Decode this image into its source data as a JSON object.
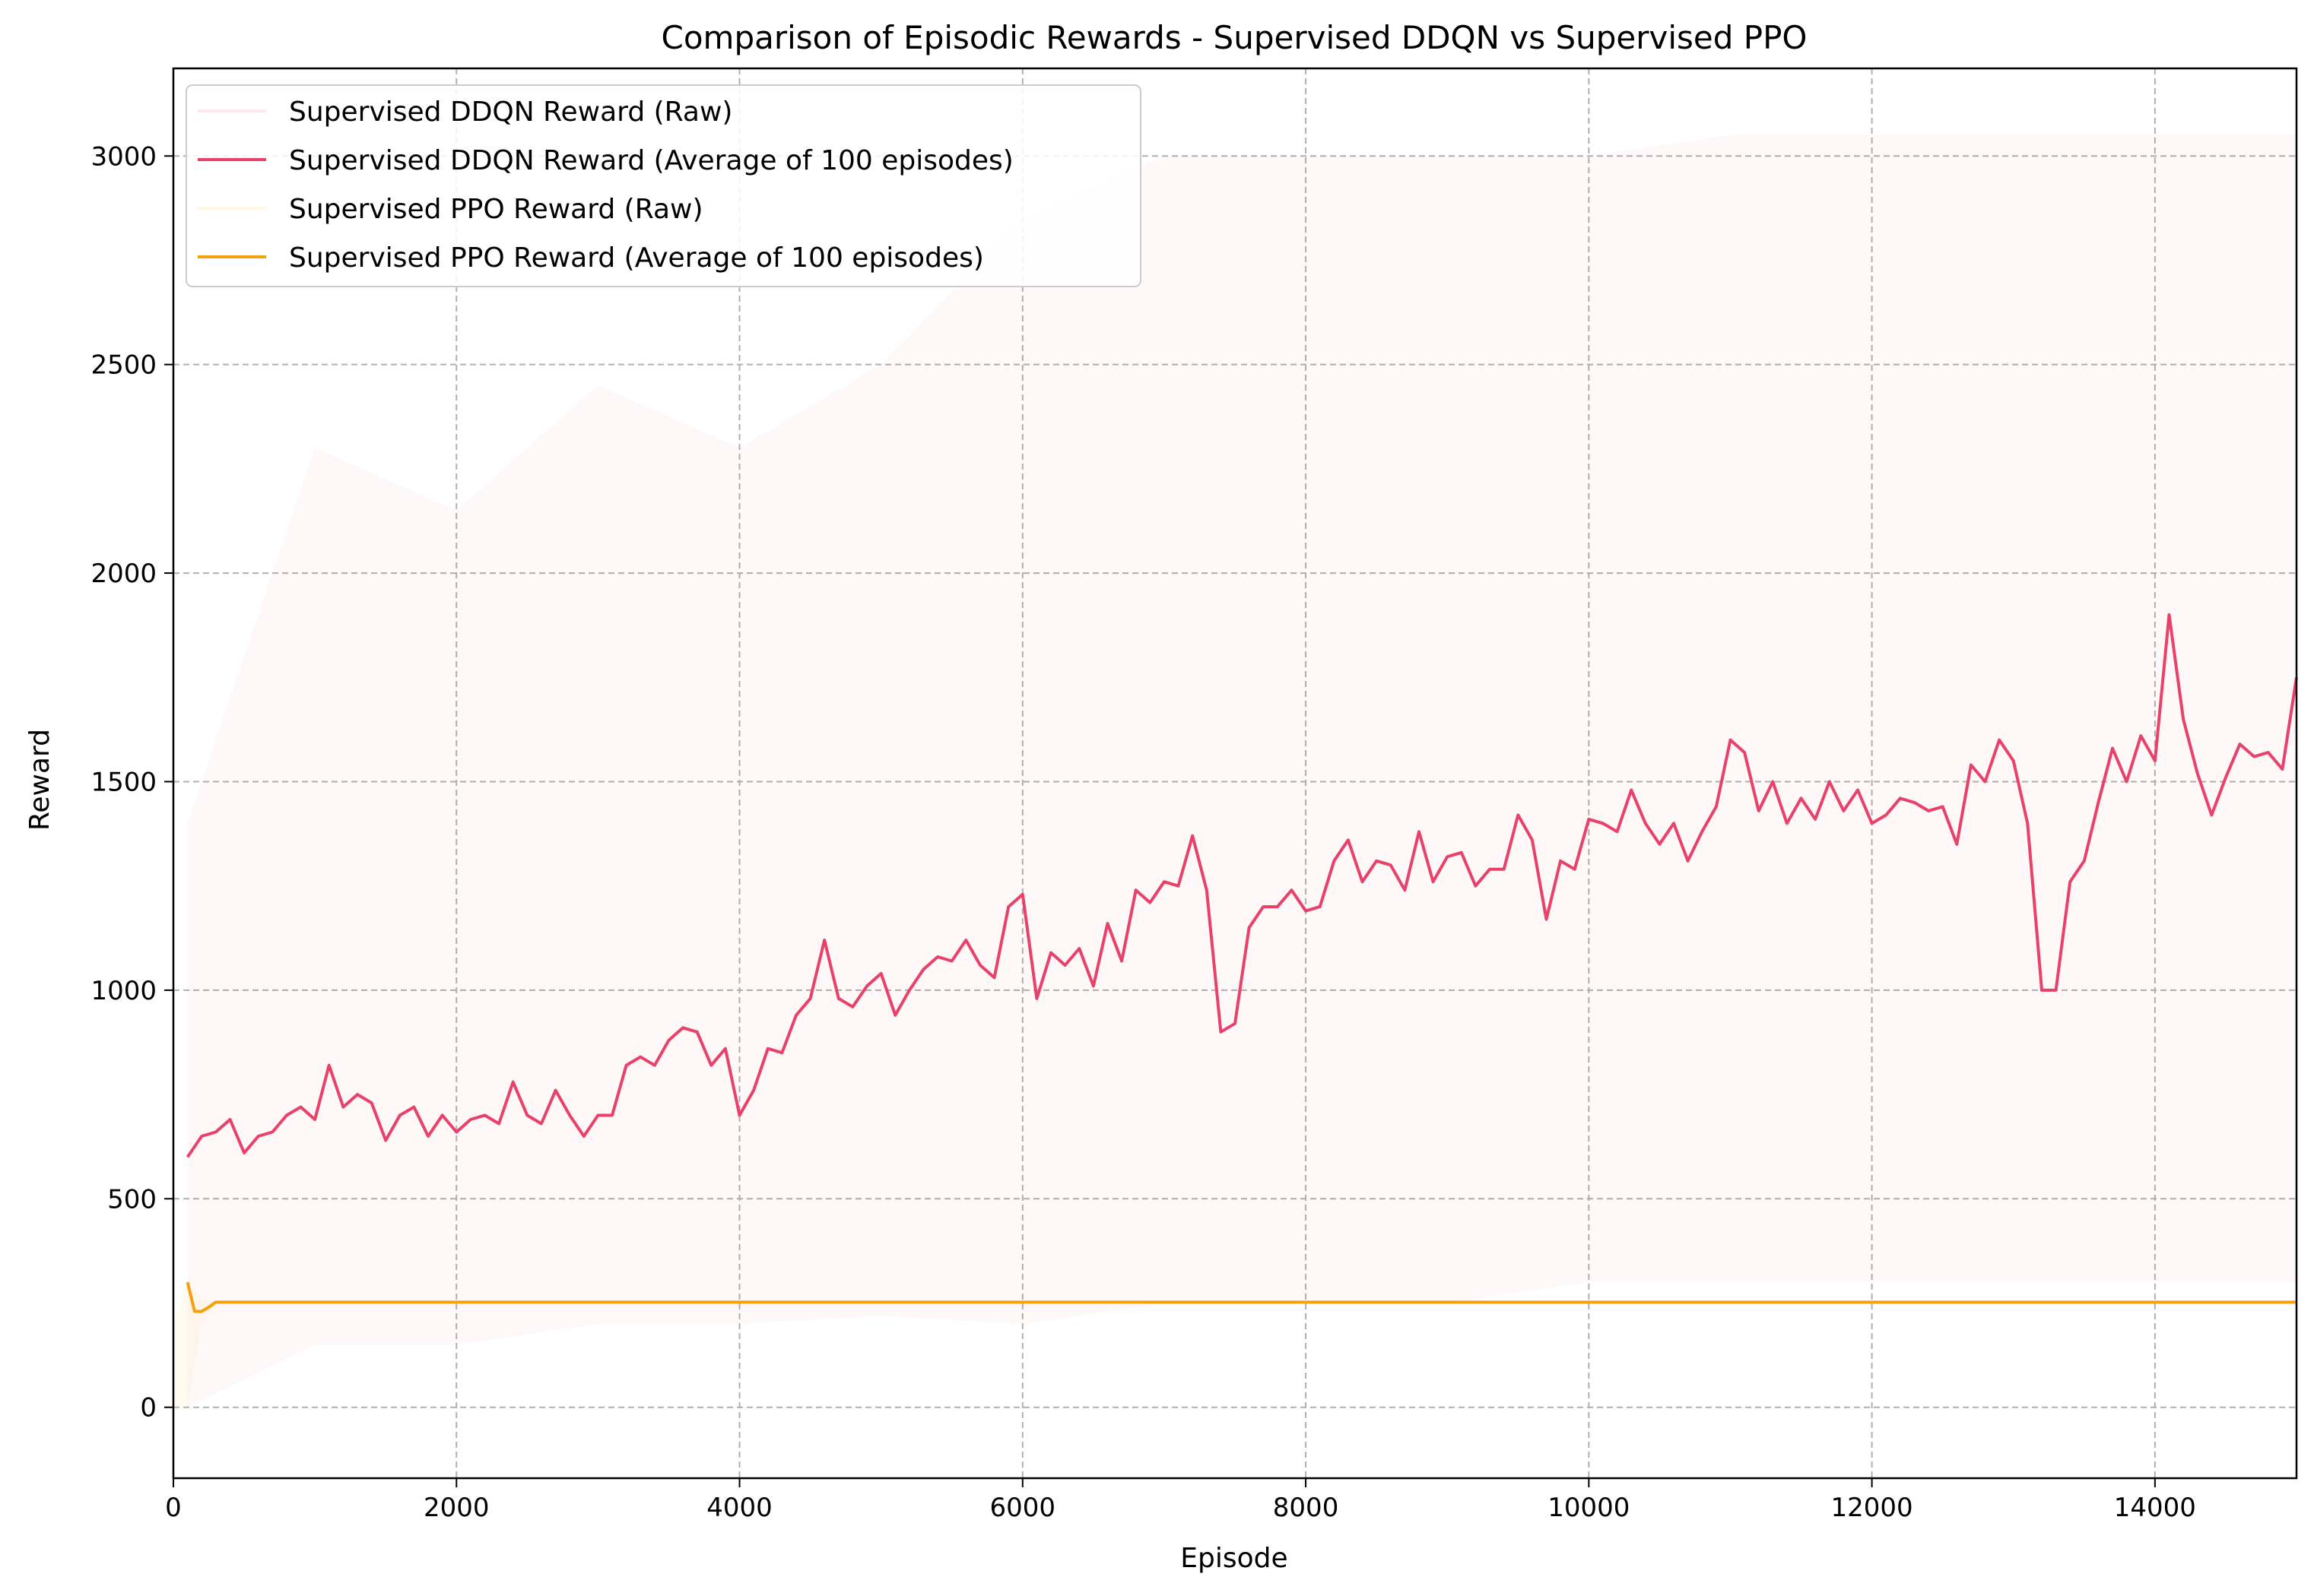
{
  "chart_data": {
    "type": "line",
    "title": "Comparison of Episodic Rewards - Supervised DDQN vs Supervised PPO",
    "xlabel": "Episode",
    "ylabel": "Reward",
    "xlim": [
      0,
      15000
    ],
    "ylim": [
      -170,
      3210
    ],
    "xticks": [
      0,
      2000,
      4000,
      6000,
      8000,
      10000,
      12000,
      14000
    ],
    "yticks": [
      0,
      500,
      1000,
      1500,
      2000,
      2500,
      3000
    ],
    "grid": true,
    "legend_position": "top-left",
    "series": [
      {
        "name": "Supervised DDQN Reward (Raw)",
        "style": "raw-band",
        "color": "#e8416a",
        "opacity": 0.04,
        "x": [
          100,
          1000,
          2000,
          3000,
          4000,
          5000,
          6000,
          7000,
          8000,
          9000,
          10000,
          11000,
          12000,
          13000,
          14000,
          15000
        ],
        "lower": [
          0,
          150,
          150,
          200,
          200,
          220,
          200,
          250,
          250,
          250,
          300,
          300,
          300,
          300,
          300,
          300
        ],
        "upper": [
          1400,
          2300,
          2150,
          2450,
          2300,
          2500,
          2850,
          3000,
          3000,
          3000,
          3000,
          3050,
          3050,
          3050,
          3050,
          3050
        ]
      },
      {
        "name": "Supervised DDQN Reward (Average of 100 episodes)",
        "style": "line",
        "color": "#e8416a",
        "x": [
          100,
          200,
          300,
          400,
          500,
          600,
          700,
          800,
          900,
          1000,
          1100,
          1200,
          1300,
          1400,
          1500,
          1600,
          1700,
          1800,
          1900,
          2000,
          2100,
          2200,
          2300,
          2400,
          2500,
          2600,
          2700,
          2800,
          2900,
          3000,
          3100,
          3200,
          3300,
          3400,
          3500,
          3600,
          3700,
          3800,
          3900,
          4000,
          4100,
          4200,
          4300,
          4400,
          4500,
          4600,
          4700,
          4800,
          4900,
          5000,
          5100,
          5200,
          5300,
          5400,
          5500,
          5600,
          5700,
          5800,
          5900,
          6000,
          6100,
          6200,
          6300,
          6400,
          6500,
          6600,
          6700,
          6800,
          6900,
          7000,
          7100,
          7200,
          7300,
          7400,
          7500,
          7600,
          7700,
          7800,
          7900,
          8000,
          8100,
          8200,
          8300,
          8400,
          8500,
          8600,
          8700,
          8800,
          8900,
          9000,
          9100,
          9200,
          9300,
          9400,
          9500,
          9600,
          9700,
          9800,
          9900,
          10000,
          10100,
          10200,
          10300,
          10400,
          10500,
          10600,
          10700,
          10800,
          10900,
          11000,
          11100,
          11200,
          11300,
          11400,
          11500,
          11600,
          11700,
          11800,
          11900,
          12000,
          12100,
          12200,
          12300,
          12400,
          12500,
          12600,
          12700,
          12800,
          12900,
          13000,
          13100,
          13200,
          13300,
          13400,
          13500,
          13600,
          13700,
          13800,
          13900,
          14000,
          14100,
          14200,
          14300,
          14400,
          14500,
          14600,
          14700,
          14800,
          14900,
          15000
        ],
        "y": [
          600,
          650,
          660,
          690,
          610,
          650,
          660,
          700,
          720,
          690,
          820,
          720,
          750,
          730,
          640,
          700,
          720,
          650,
          700,
          660,
          690,
          700,
          680,
          780,
          700,
          680,
          760,
          700,
          650,
          700,
          700,
          820,
          840,
          820,
          880,
          910,
          900,
          820,
          860,
          700,
          760,
          860,
          850,
          940,
          980,
          1120,
          980,
          960,
          1010,
          1040,
          940,
          1000,
          1050,
          1080,
          1070,
          1120,
          1060,
          1030,
          1200,
          1230,
          980,
          1090,
          1060,
          1100,
          1010,
          1160,
          1070,
          1240,
          1210,
          1260,
          1250,
          1370,
          1240,
          900,
          920,
          1150,
          1200,
          1200,
          1240,
          1190,
          1200,
          1310,
          1360,
          1260,
          1310,
          1300,
          1240,
          1380,
          1260,
          1320,
          1330,
          1250,
          1290,
          1290,
          1420,
          1360,
          1170,
          1310,
          1290,
          1410,
          1400,
          1380,
          1480,
          1400,
          1350,
          1400,
          1310,
          1380,
          1440,
          1600,
          1570,
          1430,
          1500,
          1400,
          1460,
          1410,
          1500,
          1430,
          1480,
          1400,
          1420,
          1460,
          1450,
          1430,
          1440,
          1350,
          1540,
          1500,
          1600,
          1550,
          1400,
          1000,
          1000,
          1260,
          1310,
          1450,
          1580,
          1500,
          1610,
          1550,
          1900,
          1650,
          1520,
          1420,
          1510,
          1590,
          1560,
          1570,
          1530,
          1750
        ]
      },
      {
        "name": "Supervised PPO Reward (Raw)",
        "style": "raw-band",
        "color": "#f5c518",
        "opacity": 0.06,
        "x": [
          0,
          50,
          100,
          200,
          300
        ],
        "lower": [
          0,
          0,
          0,
          200,
          250
        ],
        "upper": [
          200,
          250,
          300,
          260,
          252
        ]
      },
      {
        "name": "Supervised PPO Reward (Average of 100 episodes)",
        "style": "line",
        "color": "#f5a10f",
        "x": [
          100,
          150,
          200,
          250,
          300,
          400,
          15000
        ],
        "y": [
          300,
          230,
          230,
          240,
          252,
          252,
          252
        ]
      }
    ]
  }
}
